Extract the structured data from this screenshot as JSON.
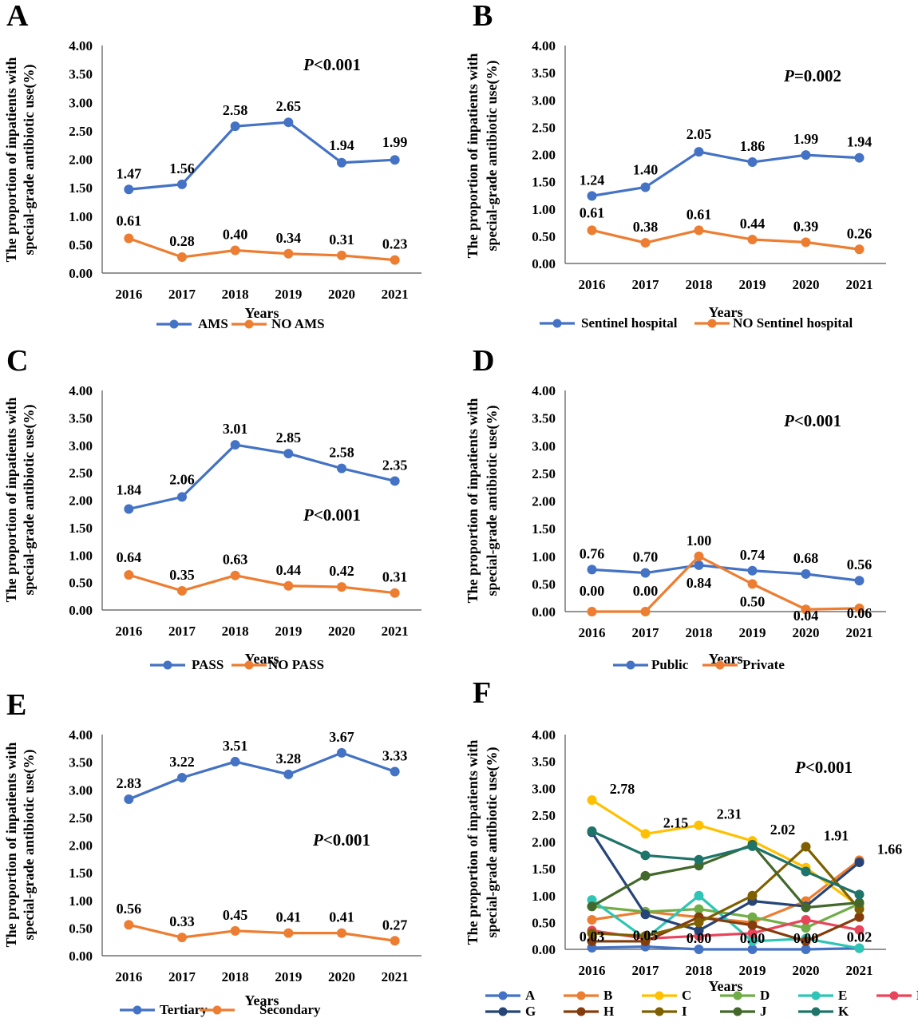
{
  "chart_data": [
    {
      "panel": "A",
      "type": "line",
      "categories": [
        "2016",
        "2017",
        "2018",
        "2019",
        "2020",
        "2021"
      ],
      "series": [
        {
          "name": "AMS",
          "color": "#4472C4",
          "values": [
            1.47,
            1.56,
            2.58,
            2.65,
            1.94,
            1.99
          ],
          "labels": [
            "1.47",
            "1.56",
            "2.58",
            "2.65",
            "1.94",
            "1.99"
          ]
        },
        {
          "name": "NO AMS",
          "color": "#ED7D31",
          "values": [
            0.61,
            0.28,
            0.4,
            0.34,
            0.31,
            0.23
          ],
          "labels": [
            "0.61",
            "0.28",
            "0.40",
            "0.34",
            "0.31",
            "0.23"
          ]
        }
      ],
      "yticks": [
        "0.00",
        "0.50",
        "1.00",
        "1.50",
        "2.00",
        "2.50",
        "3.00",
        "3.50",
        "4.00"
      ],
      "ylim": [
        0,
        4
      ],
      "xlabel": "Years",
      "ylabel_line1": "The proportion of inpatients with",
      "ylabel_line2": "special-grade antibiotic use(%)",
      "p_prefix": "P",
      "p_value": "<0.001"
    },
    {
      "panel": "B",
      "type": "line",
      "categories": [
        "2016",
        "2017",
        "2018",
        "2019",
        "2020",
        "2021"
      ],
      "series": [
        {
          "name": "Sentinel hospital",
          "color": "#4472C4",
          "values": [
            1.24,
            1.4,
            2.05,
            1.86,
            1.99,
            1.94
          ],
          "labels": [
            "1.24",
            "1.40",
            "2.05",
            "1.86",
            "1.99",
            "1.94"
          ]
        },
        {
          "name": "NO Sentinel hospital",
          "color": "#ED7D31",
          "values": [
            0.61,
            0.38,
            0.61,
            0.44,
            0.39,
            0.26
          ],
          "labels": [
            "0.61",
            "0.38",
            "0.61",
            "0.44",
            "0.39",
            "0.26"
          ]
        }
      ],
      "yticks": [
        "0.00",
        "0.50",
        "1.00",
        "1.50",
        "2.00",
        "2.50",
        "3.00",
        "3.50",
        "4.00"
      ],
      "ylim": [
        0,
        4
      ],
      "xlabel": "Years",
      "ylabel_line1": "The proportion of inpatients with",
      "ylabel_line2": "special-grade antibiotic use(%)",
      "p_prefix": "P",
      "p_value": "=0.002"
    },
    {
      "panel": "C",
      "type": "line",
      "categories": [
        "2016",
        "2017",
        "2018",
        "2019",
        "2020",
        "2021"
      ],
      "series": [
        {
          "name": "PASS",
          "color": "#4472C4",
          "values": [
            1.84,
            2.06,
            3.01,
            2.85,
            2.58,
            2.35
          ],
          "labels": [
            "1.84",
            "2.06",
            "3.01",
            "2.85",
            "2.58",
            "2.35"
          ]
        },
        {
          "name": "NO PASS",
          "color": "#ED7D31",
          "values": [
            0.64,
            0.35,
            0.63,
            0.44,
            0.42,
            0.31
          ],
          "labels": [
            "0.64",
            "0.35",
            "0.63",
            "0.44",
            "0.42",
            "0.31"
          ]
        }
      ],
      "yticks": [
        "0.00",
        "0.50",
        "1.00",
        "1.50",
        "2.00",
        "2.50",
        "3.00",
        "3.50",
        "4.00"
      ],
      "ylim": [
        0,
        4
      ],
      "xlabel": "Years",
      "ylabel_line1": "The proportion of inpatients with",
      "ylabel_line2": "special-grade antibiotic use(%)",
      "p_prefix": "P",
      "p_value": "<0.001"
    },
    {
      "panel": "D",
      "type": "line",
      "categories": [
        "2016",
        "2017",
        "2018",
        "2019",
        "2020",
        "2021"
      ],
      "series": [
        {
          "name": "Public",
          "color": "#4472C4",
          "values": [
            0.76,
            0.7,
            0.84,
            0.74,
            0.68,
            0.56
          ],
          "labels": [
            "0.76",
            "0.70",
            "0.84",
            "0.74",
            "0.68",
            "0.56"
          ]
        },
        {
          "name": "Private",
          "color": "#ED7D31",
          "values": [
            0.0,
            0.0,
            1.0,
            0.5,
            0.04,
            0.06
          ],
          "labels": [
            "0.00",
            "0.00",
            "1.00",
            "0.50",
            "0.04",
            "0.06"
          ]
        }
      ],
      "yticks": [
        "0.00",
        "0.50",
        "1.00",
        "1.50",
        "2.00",
        "2.50",
        "3.00",
        "3.50",
        "4.00"
      ],
      "ylim": [
        0,
        4
      ],
      "xlabel": "Years",
      "ylabel_line1": "The proportion of inpatients with",
      "ylabel_line2": "special-grade antibiotic use(%)",
      "p_prefix": "P",
      "p_value": "<0.001"
    },
    {
      "panel": "E",
      "type": "line",
      "categories": [
        "2016",
        "2017",
        "2018",
        "2019",
        "2020",
        "2021"
      ],
      "series": [
        {
          "name": "Tertiary",
          "color": "#4472C4",
          "values": [
            2.83,
            3.22,
            3.51,
            3.28,
            3.67,
            3.33
          ],
          "labels": [
            "2.83",
            "3.22",
            "3.51",
            "3.28",
            "3.67",
            "3.33"
          ]
        },
        {
          "name": "Secondary",
          "color": "#ED7D31",
          "values": [
            0.56,
            0.33,
            0.45,
            0.41,
            0.41,
            0.27
          ],
          "labels": [
            "0.56",
            "0.33",
            "0.45",
            "0.41",
            "0.41",
            "0.27"
          ]
        }
      ],
      "yticks": [
        "0.00",
        "0.50",
        "1.00",
        "1.50",
        "2.00",
        "2.50",
        "3.00",
        "3.50",
        "4.00"
      ],
      "ylim": [
        0,
        4
      ],
      "xlabel": "Years",
      "ylabel_line1": "The proportion of inpatients with",
      "ylabel_line2": "special-grade antibiotic use(%)",
      "p_prefix": "P",
      "p_value": "<0.001"
    },
    {
      "panel": "F",
      "type": "line",
      "categories": [
        "2016",
        "2017",
        "2018",
        "2019",
        "2020",
        "2021"
      ],
      "series": [
        {
          "name": "A",
          "color": "#4472C4",
          "values": [
            0.03,
            0.05,
            0.0,
            0.0,
            0.0,
            0.02
          ]
        },
        {
          "name": "B",
          "color": "#ED7D31",
          "values": [
            0.55,
            0.7,
            0.6,
            0.5,
            0.9,
            1.66
          ]
        },
        {
          "name": "C",
          "color": "#FFC000",
          "values": [
            2.78,
            2.15,
            2.31,
            2.02,
            1.52,
            0.8
          ]
        },
        {
          "name": "D",
          "color": "#70AD47",
          "values": [
            0.8,
            0.7,
            0.75,
            0.6,
            0.4,
            0.85
          ]
        },
        {
          "name": "E",
          "color": "#2EC4B6",
          "values": [
            0.92,
            0.2,
            1.0,
            0.15,
            0.2,
            0.02
          ]
        },
        {
          "name": "F",
          "color": "#E8455A",
          "values": [
            0.35,
            0.2,
            0.25,
            0.3,
            0.55,
            0.36
          ]
        },
        {
          "name": "G",
          "color": "#264478",
          "values": [
            2.18,
            0.65,
            0.35,
            0.9,
            0.8,
            1.62
          ]
        },
        {
          "name": "H",
          "color": "#843C0C",
          "values": [
            0.15,
            0.15,
            0.6,
            0.45,
            0.15,
            0.6
          ]
        },
        {
          "name": "I",
          "color": "#7F6000",
          "values": [
            0.3,
            0.25,
            0.5,
            1.0,
            1.91,
            0.75
          ]
        },
        {
          "name": "J",
          "color": "#43682B",
          "values": [
            0.8,
            1.37,
            1.56,
            1.95,
            0.78,
            0.87
          ]
        },
        {
          "name": "K",
          "color": "#1E7468",
          "values": [
            2.2,
            1.75,
            1.67,
            1.92,
            1.45,
            1.02
          ]
        }
      ],
      "annotations": [
        {
          "text": "2.78",
          "cat": 0,
          "value": 2.78
        },
        {
          "text": "2.15",
          "cat": 1,
          "value": 2.15
        },
        {
          "text": "2.31",
          "cat": 2,
          "value": 2.31
        },
        {
          "text": "2.02",
          "cat": 3,
          "value": 2.02
        },
        {
          "text": "1.91",
          "cat": 4,
          "value": 1.91
        },
        {
          "text": "1.66",
          "cat": 5,
          "value": 1.66
        },
        {
          "text": "0.03",
          "cat": 0,
          "value": 0.03
        },
        {
          "text": "0.05",
          "cat": 1,
          "value": 0.05
        },
        {
          "text": "0.00",
          "cat": 2,
          "value": 0.0
        },
        {
          "text": "0.00",
          "cat": 3,
          "value": 0.0
        },
        {
          "text": "0.00",
          "cat": 4,
          "value": 0.0
        },
        {
          "text": "0.02",
          "cat": 5,
          "value": 0.02
        }
      ],
      "yticks": [
        "0.00",
        "0.50",
        "1.00",
        "1.50",
        "2.00",
        "2.50",
        "3.00",
        "3.50",
        "4.00"
      ],
      "ylim": [
        0,
        4
      ],
      "xlabel": "Years",
      "ylabel_line1": "The proportion of inpatients with",
      "ylabel_line2": "special-grade antibiotic use(%)",
      "p_prefix": "P",
      "p_value": "<0.001"
    }
  ]
}
